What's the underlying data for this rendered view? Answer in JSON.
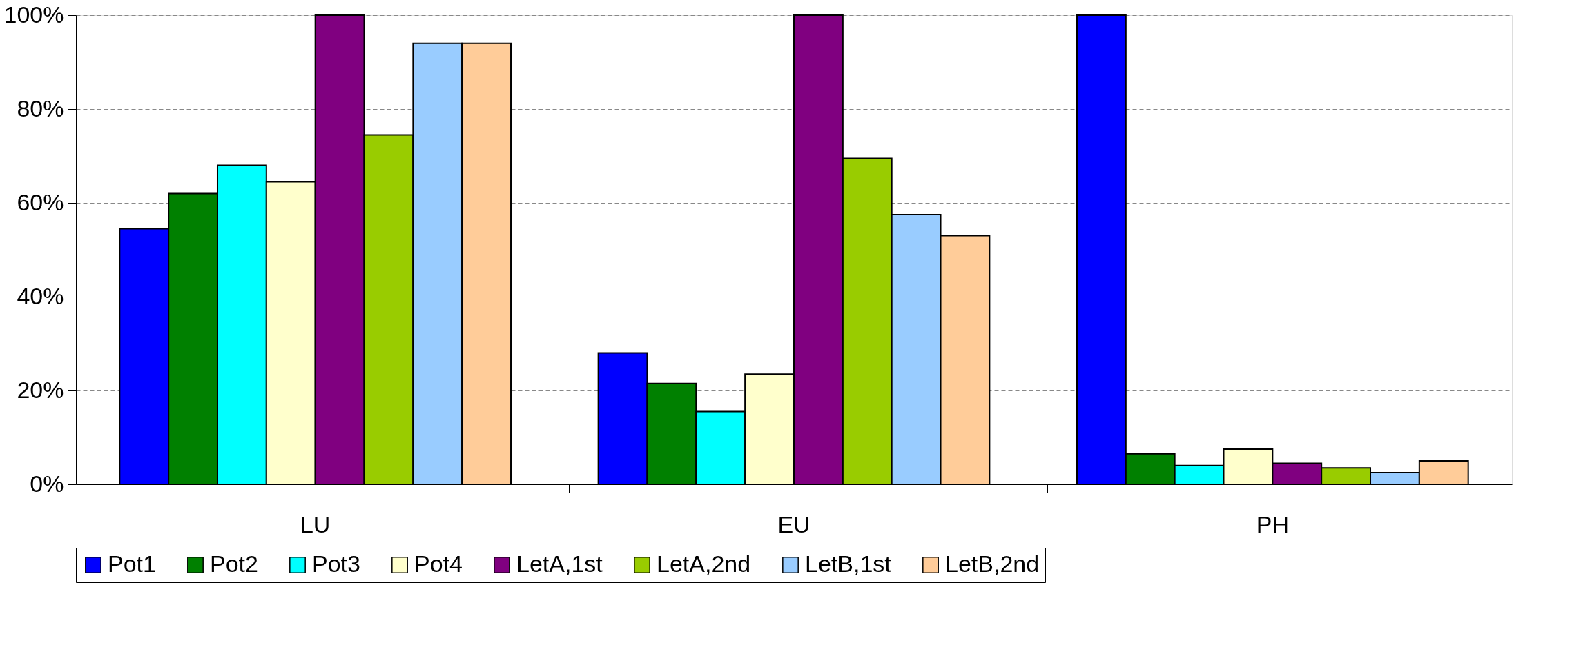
{
  "chart_data": {
    "type": "bar",
    "categories": [
      "LU",
      "EU",
      "PH"
    ],
    "series": [
      {
        "name": "Pot1",
        "color": "#0000ff",
        "values": [
          54.5,
          28,
          100
        ]
      },
      {
        "name": "Pot2",
        "color": "#008000",
        "values": [
          62,
          21.5,
          6.5
        ]
      },
      {
        "name": "Pot3",
        "color": "#00ffff",
        "values": [
          68,
          15.5,
          4
        ]
      },
      {
        "name": "Pot4",
        "color": "#ffffcc",
        "values": [
          64.5,
          23.5,
          7.5
        ]
      },
      {
        "name": "LetA,1st",
        "color": "#800080",
        "values": [
          100,
          100,
          4.5
        ]
      },
      {
        "name": "LetA,2nd",
        "color": "#99cc00",
        "values": [
          74.5,
          69.5,
          3.5
        ]
      },
      {
        "name": "LetB,1st",
        "color": "#99ccff",
        "values": [
          94,
          57.5,
          2.5
        ]
      },
      {
        "name": "LetB,2nd",
        "color": "#ffcc99",
        "values": [
          94,
          53,
          5
        ]
      }
    ],
    "ylim": [
      0,
      100
    ],
    "yticks": [
      {
        "value": 0,
        "label": "0%"
      },
      {
        "value": 20,
        "label": "20%"
      },
      {
        "value": 40,
        "label": "40%"
      },
      {
        "value": 60,
        "label": "60%"
      },
      {
        "value": 80,
        "label": "80%"
      },
      {
        "value": 100,
        "label": "100%"
      }
    ],
    "grid": "y",
    "legend": "bottom"
  }
}
